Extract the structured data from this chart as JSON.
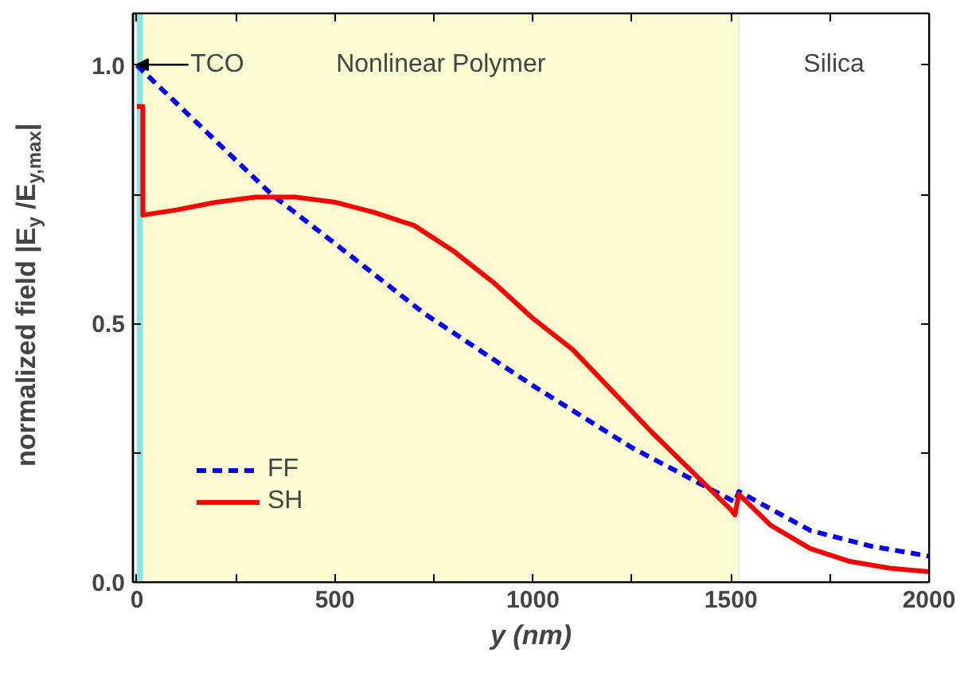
{
  "chart_data": {
    "type": "line",
    "xlabel": "y (nm)",
    "ylabel": "normalized field |E$_{y}$ /E$_{y,max}$|",
    "xlim": [
      -10,
      2000
    ],
    "ylim": [
      0,
      1.1
    ],
    "xticks": [
      0,
      {
        "value": 250,
        "label": null
      },
      500,
      {
        "value": 750,
        "label": null
      },
      1000,
      {
        "value": 1250,
        "label": null
      },
      1500,
      {
        "value": 1750,
        "label": null
      },
      2000
    ],
    "yticks": [
      {
        "value": 0,
        "label": "0.0"
      },
      {
        "value": 0.25,
        "label": null
      },
      0.5,
      {
        "value": 0.75,
        "label": null
      },
      {
        "value": 1,
        "label": "1.0"
      }
    ],
    "grid": false,
    "legend": "bottom left",
    "bands": [
      {
        "axis": "x",
        "from": 0,
        "to": 15,
        "label": "TCO",
        "color": "#7fe8e8"
      },
      {
        "axis": "x",
        "from": 15,
        "to": 1520,
        "label": "Nonlinear Polymer",
        "color": "#fdfbd2"
      },
      {
        "axis": "x",
        "from": 1520,
        "to": 2000,
        "label": "Silica",
        "color": "#ffffff"
      }
    ],
    "series": [
      {
        "name": "FF",
        "color": "#0000ff",
        "line_style": "dashed",
        "x": [
          0,
          340,
          500,
          725,
          1000,
          1250,
          1510,
          1520,
          1700,
          1850,
          2000
        ],
        "values": [
          1.0,
          0.75,
          0.655,
          0.52,
          0.38,
          0.26,
          0.155,
          0.175,
          0.1,
          0.07,
          0.05
        ]
      },
      {
        "name": "SH",
        "color": "#ff0000",
        "line_style": "solid",
        "x": [
          0,
          15,
          15,
          100,
          200,
          300,
          400,
          500,
          600,
          700,
          800,
          900,
          1000,
          1100,
          1200,
          1300,
          1400,
          1500,
          1510,
          1520,
          1600,
          1700,
          1800,
          1900,
          2000
        ],
        "values": [
          0.92,
          0.92,
          0.71,
          0.72,
          0.735,
          0.745,
          0.745,
          0.735,
          0.715,
          0.69,
          0.64,
          0.58,
          0.51,
          0.45,
          0.37,
          0.29,
          0.215,
          0.14,
          0.13,
          0.17,
          0.11,
          0.065,
          0.04,
          0.027,
          0.02
        ]
      }
    ]
  }
}
